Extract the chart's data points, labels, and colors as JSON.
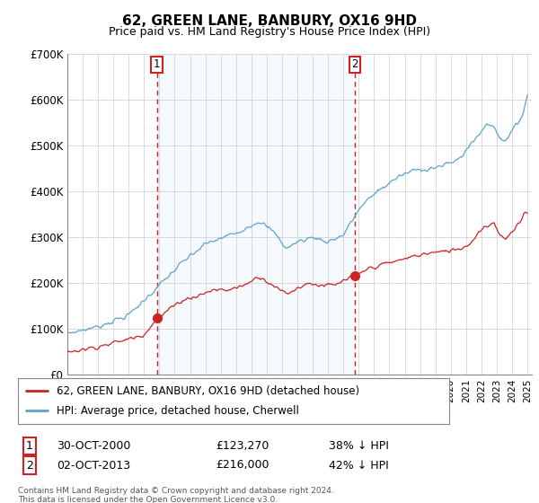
{
  "title": "62, GREEN LANE, BANBURY, OX16 9HD",
  "subtitle": "Price paid vs. HM Land Registry's House Price Index (HPI)",
  "ylim": [
    0,
    700000
  ],
  "yticks": [
    0,
    100000,
    200000,
    300000,
    400000,
    500000,
    600000,
    700000
  ],
  "ytick_labels": [
    "£0",
    "£100K",
    "£200K",
    "£300K",
    "£400K",
    "£500K",
    "£600K",
    "£700K"
  ],
  "hpi_color": "#5ba3d0",
  "hpi_fill_color": "#ddeef8",
  "price_color": "#cc2222",
  "vline_color": "#cc2222",
  "marker1_year": 2000.83,
  "marker1_value": 123270,
  "marker2_year": 2013.75,
  "marker2_value": 216000,
  "legend_line1": "62, GREEN LANE, BANBURY, OX16 9HD (detached house)",
  "legend_line2": "HPI: Average price, detached house, Cherwell",
  "table_row1": [
    "1",
    "30-OCT-2000",
    "£123,270",
    "38% ↓ HPI"
  ],
  "table_row2": [
    "2",
    "02-OCT-2013",
    "£216,000",
    "42% ↓ HPI"
  ],
  "footer": "Contains HM Land Registry data © Crown copyright and database right 2024.\nThis data is licensed under the Open Government Licence v3.0.",
  "background_color": "#ffffff",
  "grid_color": "#cccccc"
}
